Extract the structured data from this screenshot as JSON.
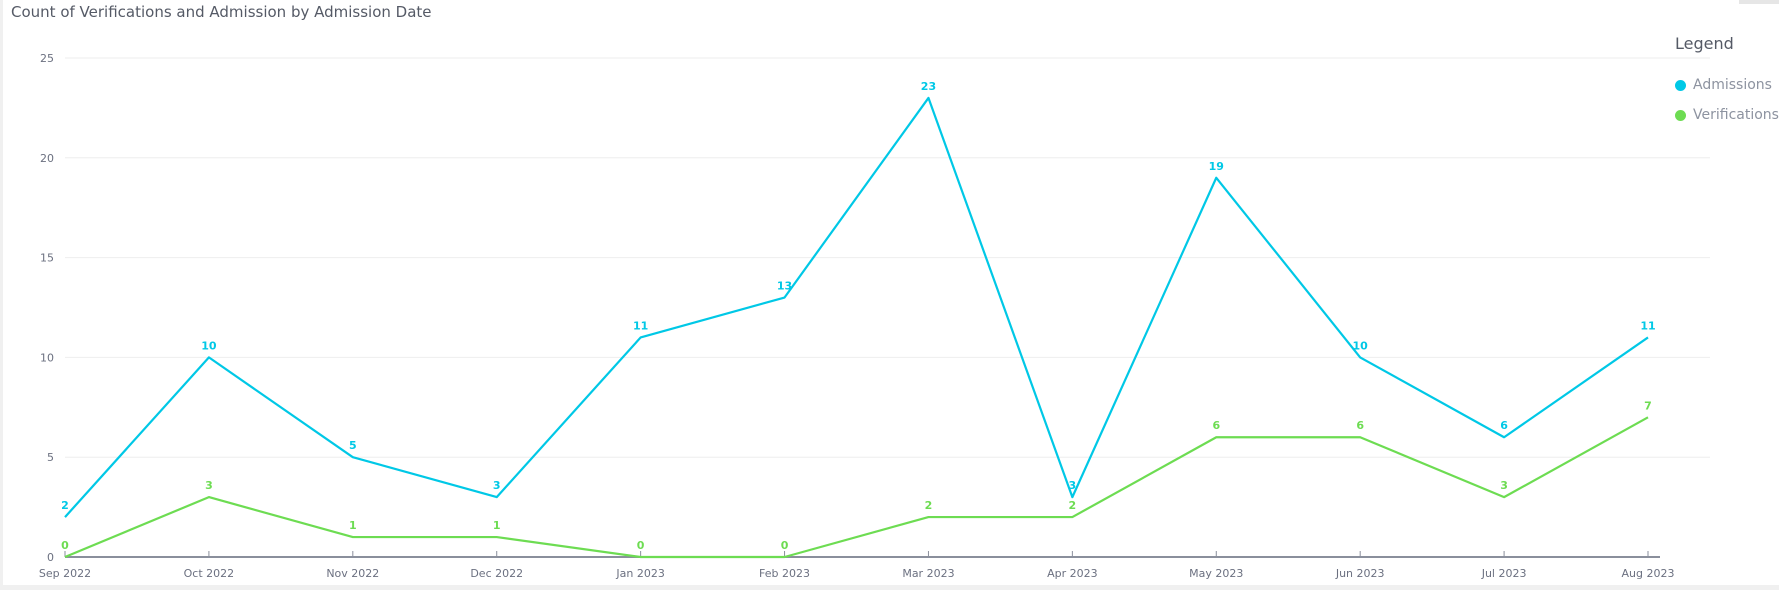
{
  "chart_data": {
    "type": "line",
    "title": "Count of Verifications and Admission by Admission Date",
    "xlabel": "",
    "ylabel": "",
    "categories": [
      "Sep 2022",
      "Oct 2022",
      "Nov 2022",
      "Dec 2022",
      "Jan 2023",
      "Feb 2023",
      "Mar 2023",
      "Apr 2023",
      "May 2023",
      "Jun 2023",
      "Jul 2023",
      "Aug 2023"
    ],
    "ylim": [
      0,
      25
    ],
    "yticks": [
      0,
      5,
      10,
      15,
      20,
      25
    ],
    "grid": true,
    "legend_title": "Legend",
    "legend_position": "right",
    "series": [
      {
        "name": "Admissions",
        "color": "#00c8e6",
        "values": [
          2,
          10,
          5,
          3,
          11,
          13,
          23,
          3,
          19,
          10,
          6,
          11
        ]
      },
      {
        "name": "Verifications",
        "color": "#6ddc52",
        "values": [
          0,
          3,
          1,
          1,
          0,
          0,
          2,
          2,
          6,
          6,
          3,
          7
        ]
      }
    ]
  }
}
